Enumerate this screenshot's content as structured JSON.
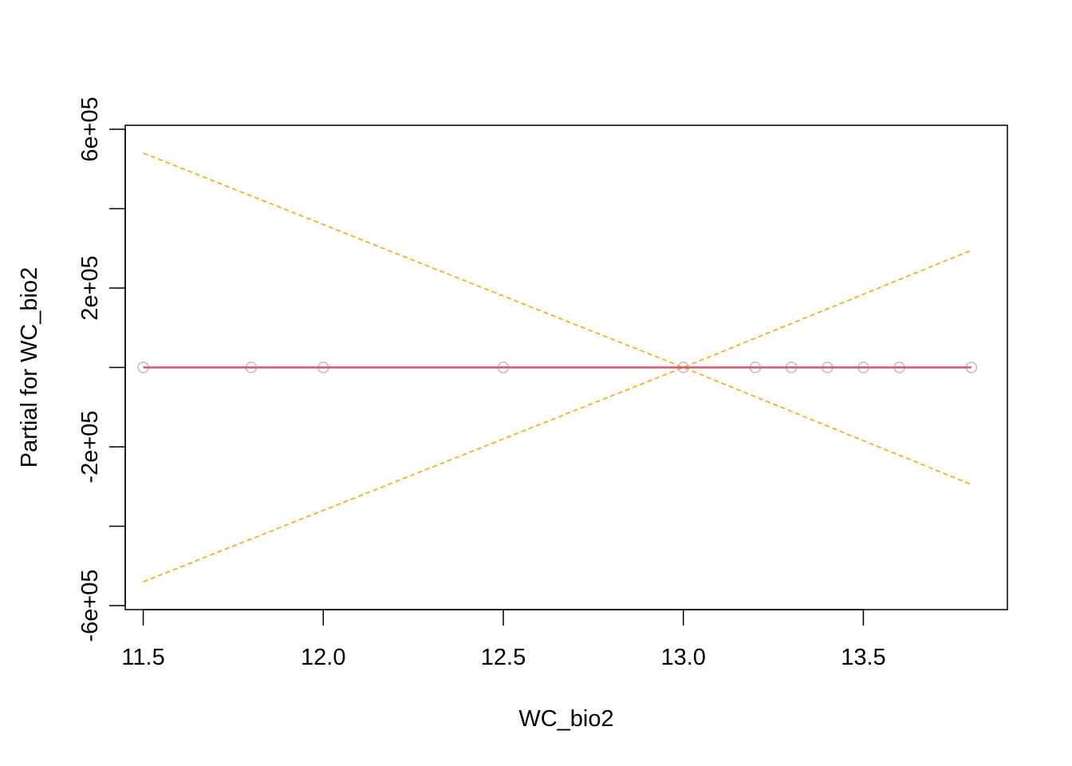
{
  "chart_data": {
    "type": "line",
    "title": "",
    "xlabel": "WC_bio2",
    "ylabel": "Partial for WC_bio2",
    "xlim": [
      11.45,
      13.9
    ],
    "ylim": [
      -610000,
      610000
    ],
    "x_ticks": [
      11.5,
      12.0,
      12.5,
      13.0,
      13.5
    ],
    "x_tick_labels": [
      "11.5",
      "12.0",
      "12.5",
      "13.0",
      "13.5"
    ],
    "y_ticks": [
      -600000,
      -400000,
      -200000,
      0,
      200000,
      400000,
      600000
    ],
    "y_tick_labels": [
      "-6e+05",
      "",
      "-2e+05",
      "",
      "2e+05",
      "",
      "6e+05"
    ],
    "grid": false,
    "series": [
      {
        "role": "fit",
        "style": "solid",
        "color": "#DF536B",
        "x": [
          11.5,
          13.8
        ],
        "y": [
          0,
          0
        ]
      },
      {
        "role": "upper-se",
        "style": "dashed",
        "color": "#FFA500",
        "x": [
          11.5,
          13.0,
          13.8
        ],
        "y": [
          540000,
          0,
          295000
        ]
      },
      {
        "role": "lower-se",
        "style": "dashed",
        "color": "#FFA500",
        "x": [
          11.5,
          13.0,
          13.8
        ],
        "y": [
          -540000,
          0,
          -295000
        ]
      },
      {
        "role": "partial-residuals",
        "style": "points",
        "color": "#BEBEBE",
        "x": [
          11.5,
          11.8,
          12.0,
          12.5,
          13.0,
          13.2,
          13.3,
          13.4,
          13.5,
          13.6,
          13.8
        ],
        "y": [
          0,
          0,
          0,
          0,
          0,
          0,
          0,
          0,
          0,
          0,
          0
        ]
      }
    ]
  }
}
